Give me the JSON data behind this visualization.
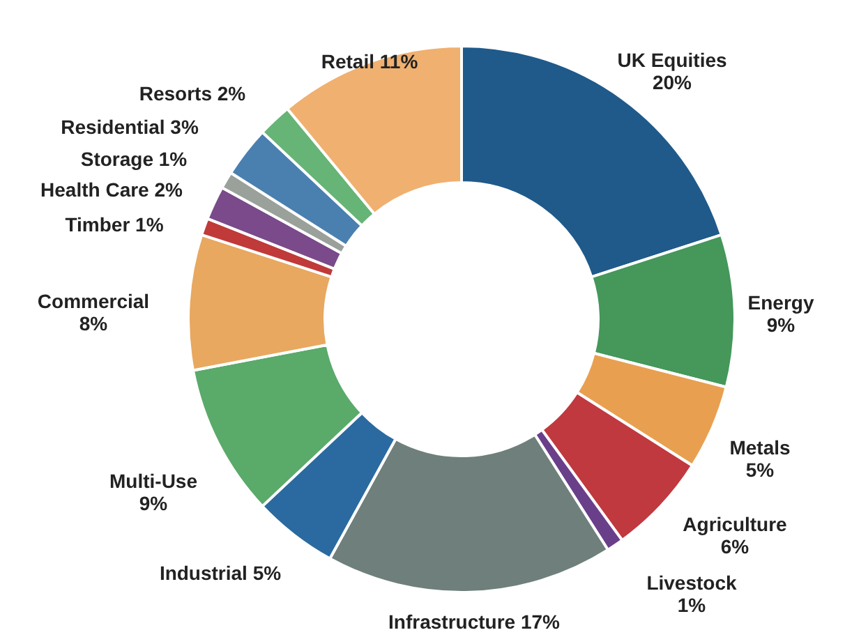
{
  "chart_data": {
    "type": "donut",
    "categories": [
      "UK Equities",
      "Energy",
      "Metals",
      "Agriculture",
      "Livestock",
      "Infrastructure",
      "Industrial",
      "Multi-Use",
      "Commercial",
      "Timber",
      "Health Care",
      "Storage",
      "Residential",
      "Resorts",
      "Retail"
    ],
    "values": [
      20,
      9,
      5,
      6,
      1,
      17,
      5,
      9,
      8,
      1,
      2,
      1,
      3,
      2,
      11
    ],
    "value_labels": [
      "20%",
      "9%",
      "5%",
      "6%",
      "1%",
      "17%",
      "5%",
      "9%",
      "8%",
      "1%",
      "2%",
      "1%",
      "3%",
      "2%",
      "11%"
    ],
    "colors": [
      "#1f5a8a",
      "#45975a",
      "#e8a050",
      "#c0393f",
      "#6a3f8a",
      "#6f7f7b",
      "#2a6aa0",
      "#5aaa6a",
      "#e8a860",
      "#c03a3a",
      "#7a4a8a",
      "#9aa09a",
      "#4a80b0",
      "#66b476",
      "#f0b070"
    ]
  }
}
